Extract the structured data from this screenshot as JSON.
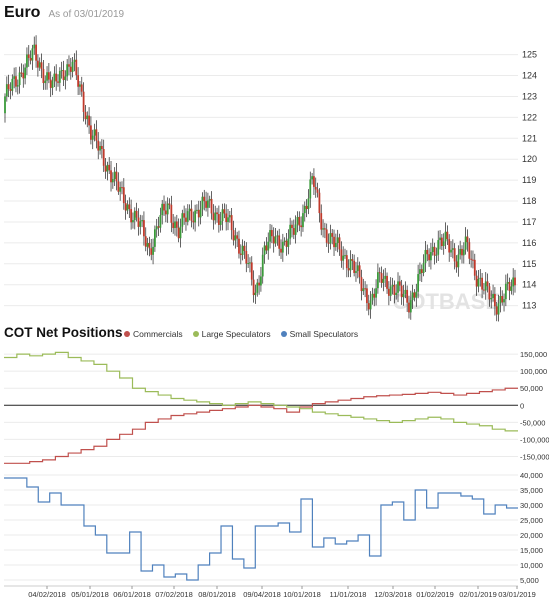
{
  "header": {
    "title": "Euro",
    "as_of": "As of 03/01/2019"
  },
  "cot": {
    "title": "COT Net Positions",
    "watermark": "COTBASE"
  },
  "colors": {
    "up": "#3a9a3a",
    "down": "#c0392b",
    "commercials": "#c0504d",
    "large": "#9bbb59",
    "small": "#4f81bd",
    "grid": "#ebebeb"
  },
  "chart_data": [
    {
      "type": "candlestick",
      "title": "Euro",
      "y_ticks": [
        113,
        114,
        115,
        116,
        117,
        118,
        119,
        120,
        121,
        122,
        123,
        124,
        125
      ],
      "ylim": [
        112.6,
        125.7
      ],
      "closes_weekly": [
        123.0,
        123.6,
        124.5,
        125.0,
        124.2,
        123.4,
        124.3,
        124.5,
        123.0,
        121.2,
        120.2,
        119.4,
        118.3,
        117.6,
        116.8,
        115.7,
        117.0,
        117.8,
        116.5,
        117.3,
        117.6,
        117.8,
        117.4,
        117.1,
        116.3,
        115.3,
        113.5,
        115.8,
        116.2,
        116.0,
        116.5,
        117.5,
        119.0,
        116.8,
        116.0,
        115.5,
        115.0,
        114.0,
        113.2,
        114.3,
        114.0,
        113.6,
        113.2,
        114.2,
        115.6,
        115.9,
        116.0,
        115.3,
        115.8,
        114.5,
        113.6,
        113.1,
        113.6,
        114.0
      ]
    },
    {
      "type": "line",
      "title": "COT Net Positions",
      "series": [
        {
          "name": "Commercials",
          "values": [
            -170000,
            -170000,
            -165000,
            -160000,
            -150000,
            -140000,
            -130000,
            -120000,
            -100000,
            -85000,
            -70000,
            -50000,
            -40000,
            -30000,
            -25000,
            -20000,
            -15000,
            -10000,
            -5000,
            0,
            -5000,
            -10000,
            -20000,
            -5000,
            5000,
            10000,
            15000,
            20000,
            25000,
            28000,
            30000,
            32000,
            35000,
            38000,
            35000,
            30000,
            35000,
            40000,
            45000,
            50000
          ]
        },
        {
          "name": "Large Speculators",
          "values": [
            140000,
            150000,
            145000,
            150000,
            155000,
            140000,
            130000,
            120000,
            100000,
            80000,
            50000,
            40000,
            30000,
            20000,
            15000,
            10000,
            5000,
            0,
            5000,
            10000,
            5000,
            0,
            -5000,
            -10000,
            -20000,
            -25000,
            -30000,
            -35000,
            -40000,
            -45000,
            -50000,
            -45000,
            -40000,
            -35000,
            -40000,
            -50000,
            -55000,
            -60000,
            -70000,
            -75000
          ]
        }
      ],
      "y_ticks": [
        "150,000",
        "100,000",
        "50,000",
        "0",
        "-50,000",
        "-100,000",
        "-150,000"
      ],
      "ylim": [
        -175000,
        165000
      ]
    },
    {
      "type": "line",
      "series": [
        {
          "name": "Small Speculators",
          "values": [
            39000,
            39000,
            36000,
            31000,
            34000,
            30000,
            30000,
            23000,
            20000,
            14000,
            14000,
            21000,
            8000,
            10000,
            6000,
            7000,
            5000,
            10000,
            14000,
            23000,
            12000,
            9000,
            23000,
            23000,
            24000,
            21000,
            32000,
            16000,
            19000,
            17000,
            18000,
            20000,
            13000,
            30000,
            31000,
            25000,
            35000,
            29000,
            34000,
            34000,
            33000,
            32000,
            27000,
            30000,
            29000
          ]
        }
      ],
      "y_ticks": [
        "40,000",
        "35,000",
        "30,000",
        "25,000",
        "20,000",
        "15,000",
        "10,000",
        "5,000"
      ],
      "ylim": [
        3000,
        43000
      ],
      "x_ticks": [
        "04/02/2018",
        "05/01/2018",
        "06/01/2018",
        "07/02/2018",
        "08/01/2018",
        "09/04/2018",
        "10/01/2018",
        "11/01/2018",
        "12/03/2018",
        "01/02/2019",
        "02/01/2019",
        "03/01/2019"
      ]
    }
  ]
}
